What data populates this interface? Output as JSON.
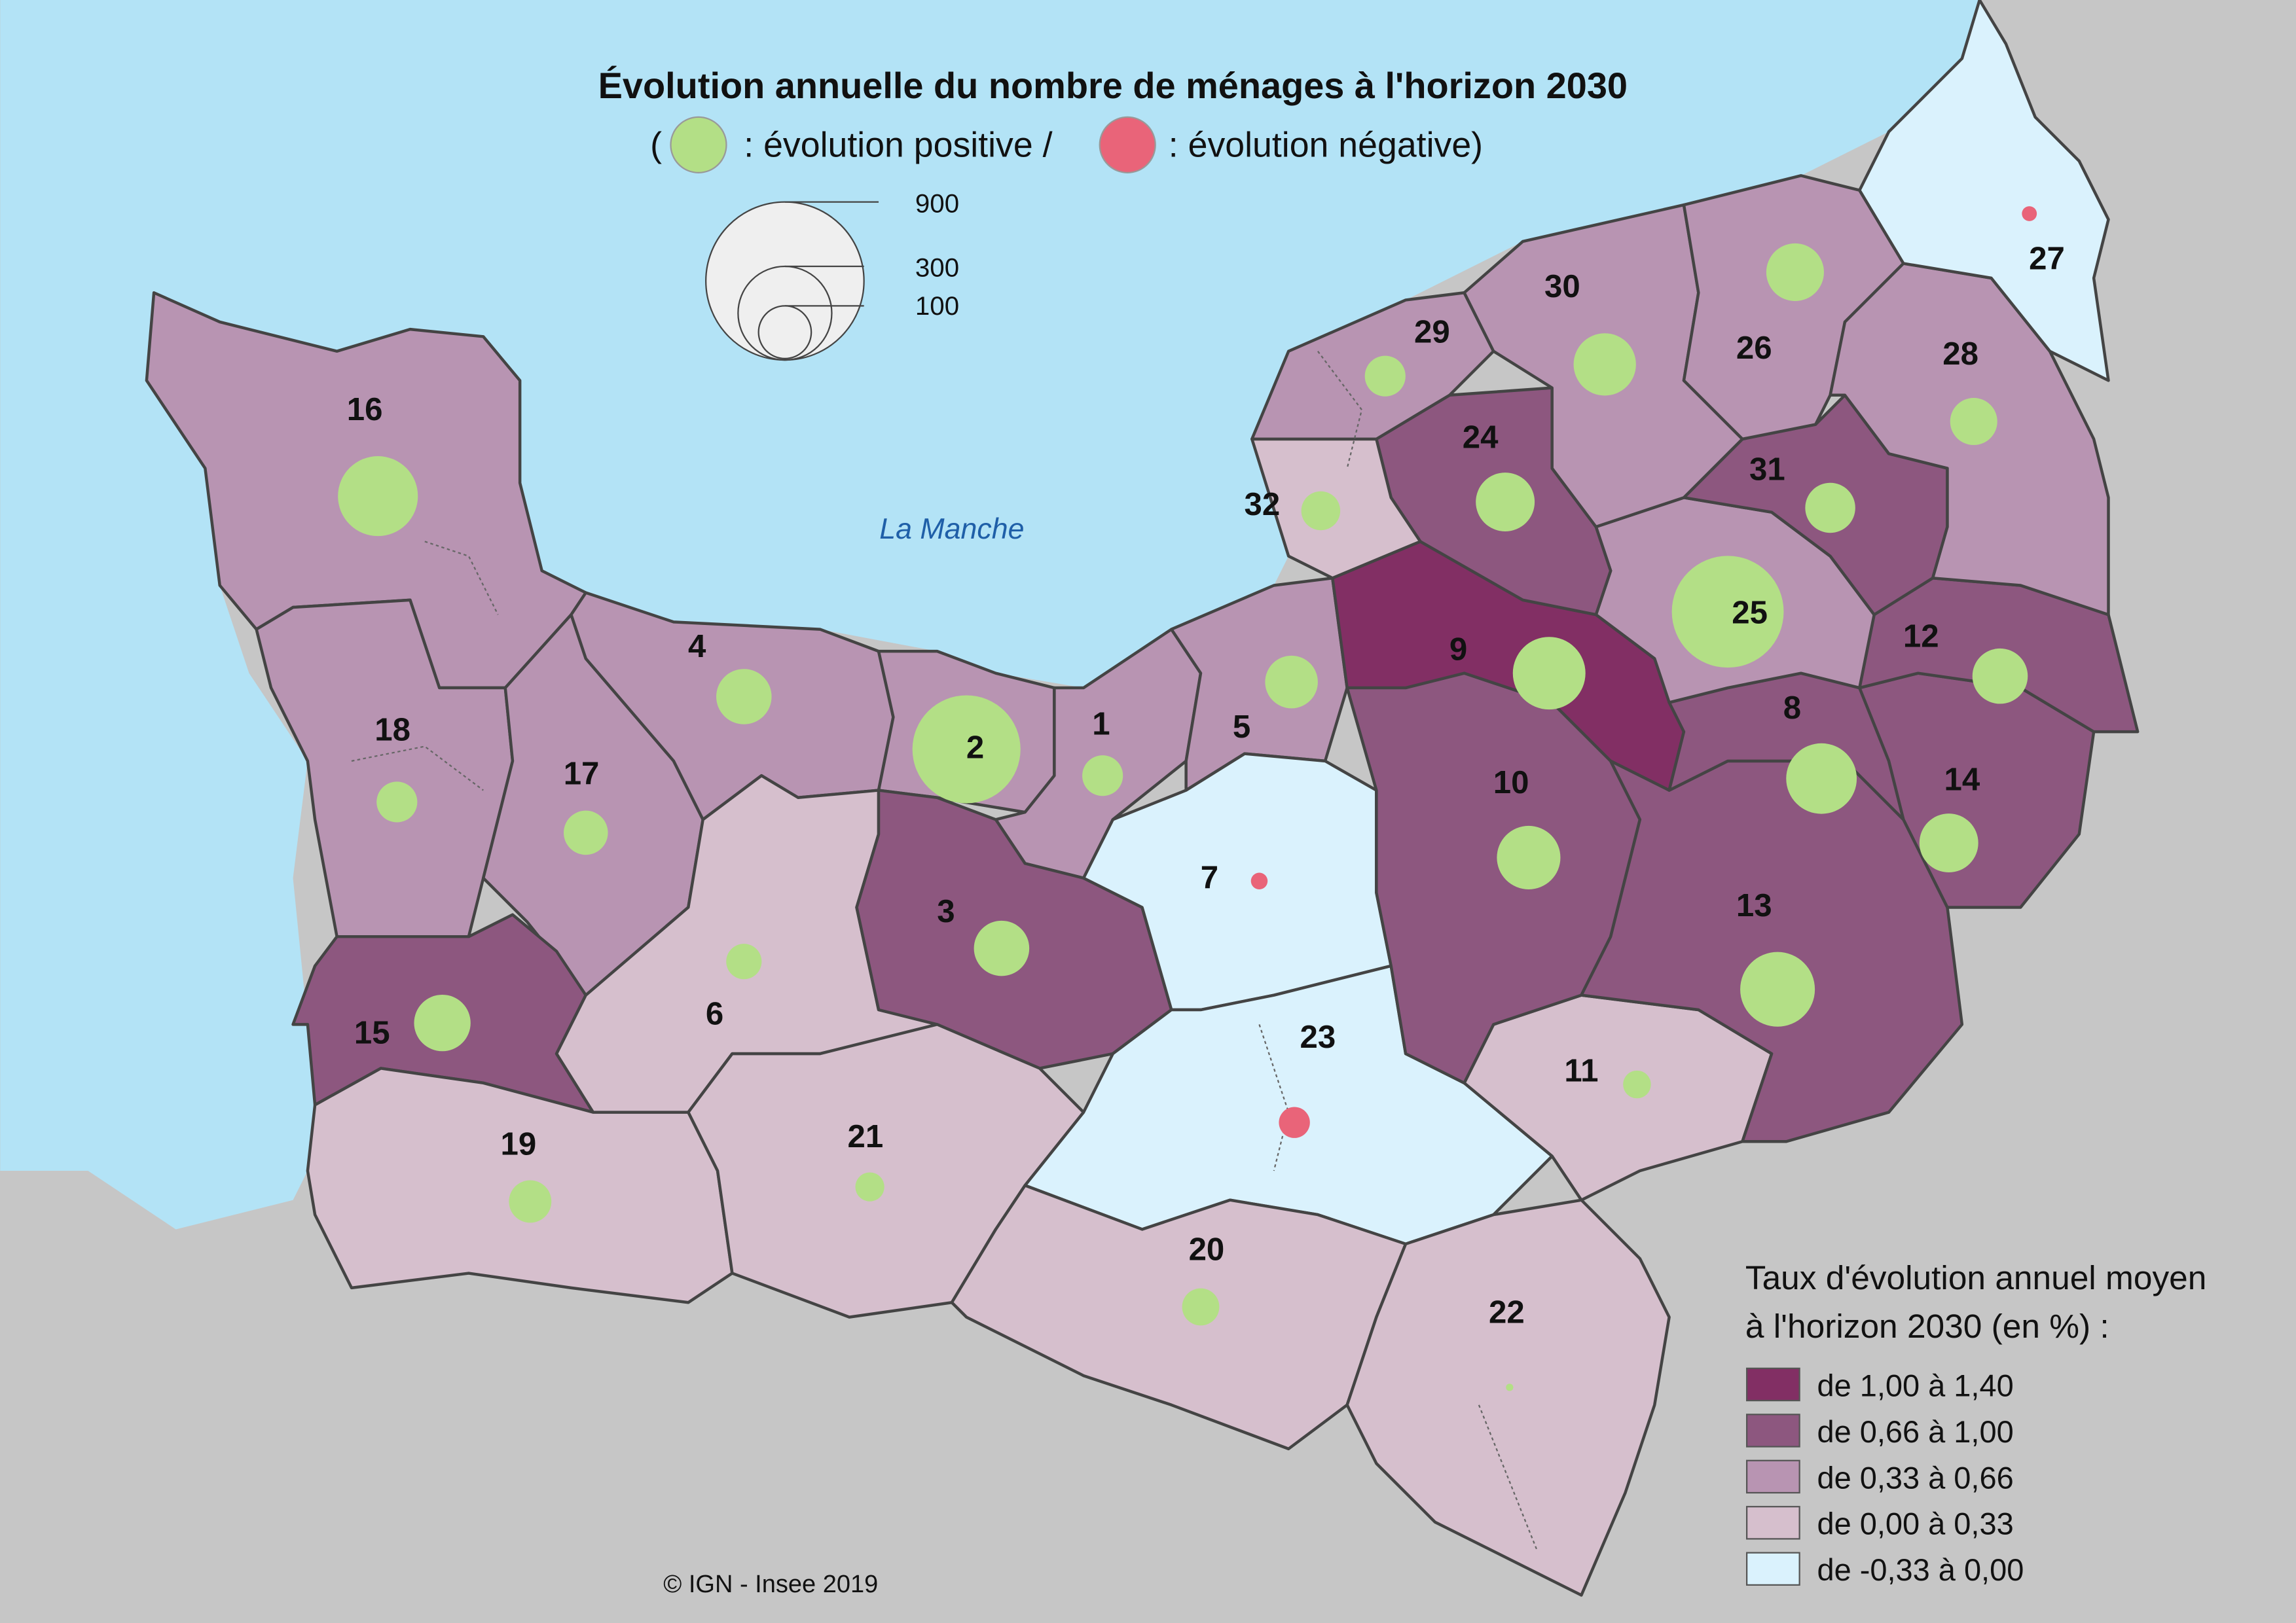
{
  "title": "Évolution annuelle du nombre de ménages à l'horizon 2030",
  "subtitle": {
    "open": "(",
    "positive": ": évolution positive /",
    "negative": ": évolution négative)"
  },
  "sea_label": "La Manche",
  "credit": "© IGN - Insee 2019",
  "colors": {
    "sea": "#b3e3f6",
    "outside": "#c6c6c6",
    "positive": "#b3df86",
    "negative": "#e96479",
    "c5": "#822f64",
    "c4": "#8d577f",
    "c3": "#b894b2",
    "c2": "#d6bfcd",
    "c1": "#daf2fd"
  },
  "size_legend": {
    "values": [
      "900",
      "300",
      "100"
    ]
  },
  "class_legend": {
    "title_line1": "Taux d'évolution annuel moyen",
    "title_line2": "à l'horizon 2030 (en %) :",
    "classes": [
      {
        "label": "de 1,00 à 1,40",
        "color": "#822f64"
      },
      {
        "label": "de 0,66 à 1,00",
        "color": "#8d577f"
      },
      {
        "label": "de 0,33 à 0,66",
        "color": "#b894b2"
      },
      {
        "label": "de 0,00 à 0,33",
        "color": "#d6bfcd"
      },
      {
        "label": "de -0,33 à 0,00",
        "color": "#daf2fd"
      }
    ]
  },
  "zones": [
    {
      "id": "1",
      "cls": 3,
      "sign": "positive",
      "households": 60
    },
    {
      "id": "2",
      "cls": 3,
      "sign": "positive",
      "households": 420
    },
    {
      "id": "3",
      "cls": 4,
      "sign": "positive",
      "households": 110
    },
    {
      "id": "4",
      "cls": 3,
      "sign": "positive",
      "households": 110
    },
    {
      "id": "5",
      "cls": 3,
      "sign": "positive",
      "households": 100
    },
    {
      "id": "6",
      "cls": 2,
      "sign": "positive",
      "households": 45
    },
    {
      "id": "7",
      "cls": 1,
      "sign": "negative",
      "households": 10
    },
    {
      "id": "8",
      "cls": 4,
      "sign": "positive",
      "households": 180
    },
    {
      "id": "9",
      "cls": 5,
      "sign": "positive",
      "households": 190
    },
    {
      "id": "10",
      "cls": 4,
      "sign": "positive",
      "households": 145
    },
    {
      "id": "11",
      "cls": 2,
      "sign": "positive",
      "households": 28
    },
    {
      "id": "12",
      "cls": 4,
      "sign": "positive",
      "households": 110
    },
    {
      "id": "13",
      "cls": 4,
      "sign": "positive",
      "households": 200
    },
    {
      "id": "14",
      "cls": 4,
      "sign": "positive",
      "households": 125
    },
    {
      "id": "15",
      "cls": 4,
      "sign": "positive",
      "households": 115
    },
    {
      "id": "16",
      "cls": 3,
      "sign": "positive",
      "households": 230
    },
    {
      "id": "17",
      "cls": 3,
      "sign": "positive",
      "households": 70
    },
    {
      "id": "18",
      "cls": 3,
      "sign": "positive",
      "households": 60
    },
    {
      "id": "19",
      "cls": 2,
      "sign": "positive",
      "households": 65
    },
    {
      "id": "20",
      "cls": 2,
      "sign": "positive",
      "households": 50
    },
    {
      "id": "21",
      "cls": 2,
      "sign": "positive",
      "households": 30
    },
    {
      "id": "22",
      "cls": 2,
      "sign": "positive",
      "households": 2
    },
    {
      "id": "23",
      "cls": 1,
      "sign": "negative",
      "households": 35
    },
    {
      "id": "24",
      "cls": 4,
      "sign": "positive",
      "households": 125
    },
    {
      "id": "25",
      "cls": 3,
      "sign": "positive",
      "households": 450
    },
    {
      "id": "26",
      "cls": 3,
      "sign": "positive",
      "households": 120
    },
    {
      "id": "27",
      "cls": 1,
      "sign": "negative",
      "households": 8
    },
    {
      "id": "28",
      "cls": 3,
      "sign": "positive",
      "households": 80
    },
    {
      "id": "29",
      "cls": 3,
      "sign": "positive",
      "households": 60
    },
    {
      "id": "30",
      "cls": 3,
      "sign": "positive",
      "households": 140
    },
    {
      "id": "31",
      "cls": 4,
      "sign": "positive",
      "households": 90
    },
    {
      "id": "32",
      "cls": 2,
      "sign": "positive",
      "households": 55
    }
  ]
}
